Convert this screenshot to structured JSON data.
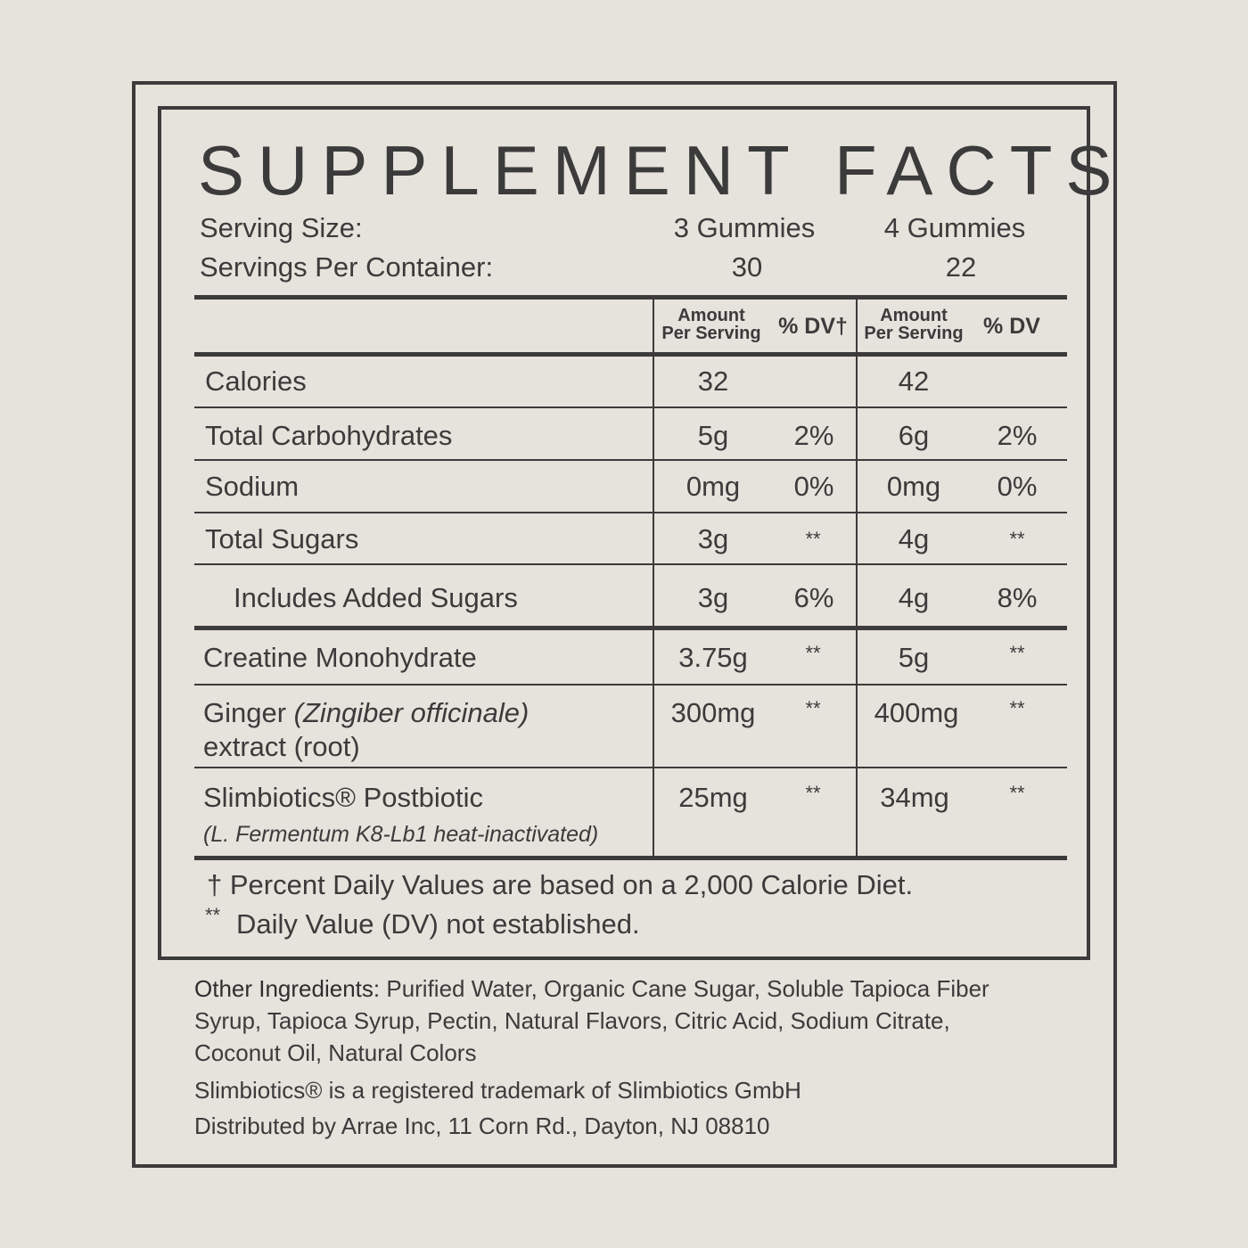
{
  "title": "SUPPLEMENT FACTS",
  "serving": {
    "size_label": "Serving Size:",
    "per_container_label": "Servings Per Container:",
    "size_1": "3 Gummies",
    "size_2": "4 Gummies",
    "count_1": "30",
    "count_2": "22"
  },
  "headers": {
    "amount_1": "Amount",
    "per_serving_1": "Per Serving",
    "dv_1": "% DV†",
    "amount_2": "Amount",
    "per_serving_2": "Per Serving",
    "dv_2": "% DV"
  },
  "rows": [
    {
      "name": "Calories",
      "a1": "32",
      "d1": "",
      "a2": "42",
      "d2": ""
    },
    {
      "name": "Total Carbohydrates",
      "a1": "5g",
      "d1": "2%",
      "a2": "6g",
      "d2": "2%"
    },
    {
      "name": "Sodium",
      "a1": "0mg",
      "d1": "0%",
      "a2": "0mg",
      "d2": "0%"
    },
    {
      "name": "Total Sugars",
      "a1": "3g",
      "d1": "**",
      "a2": "4g",
      "d2": "**"
    },
    {
      "name": "Includes Added Sugars",
      "a1": "3g",
      "d1": "6%",
      "a2": "4g",
      "d2": "8%"
    },
    {
      "name": "Creatine Monohydrate",
      "a1": "3.75g",
      "d1": "**",
      "a2": "5g",
      "d2": "**"
    },
    {
      "name": "Ginger",
      "name_italic": "(Zingiber officinale)",
      "name_line2": "extract (root)",
      "a1": "300mg",
      "d1": "**",
      "a2": "400mg",
      "d2": "**"
    },
    {
      "name": "Slimbiotics® Postbiotic",
      "name_line2": "(L. Fermentum K8-Lb1 heat-inactivated)",
      "a1": "25mg",
      "d1": "**",
      "a2": "34mg",
      "d2": "**"
    }
  ],
  "footnotes": {
    "dv_note": "† Percent Daily Values are based on a 2,000 Calorie Diet.",
    "ne_mark": "**",
    "ne_note": "Daily Value (DV) not established."
  },
  "other_ingredients": {
    "label": "Other Ingredients:",
    "text": " Purified Water, Organic Cane Sugar, Soluble Tapioca Fiber Syrup, Tapioca Syrup, Pectin, Natural Flavors, Citric Acid, Sodium Citrate, Coconut Oil, Natural Colors"
  },
  "trademark": "Slimbiotics® is a registered trademark of Slimbiotics GmbH",
  "distributor": "Distributed by Arrae Inc, 11 Corn Rd., Dayton, NJ 08810",
  "colors": {
    "background": "#e6e2dc",
    "ink": "#3b3b3b"
  }
}
